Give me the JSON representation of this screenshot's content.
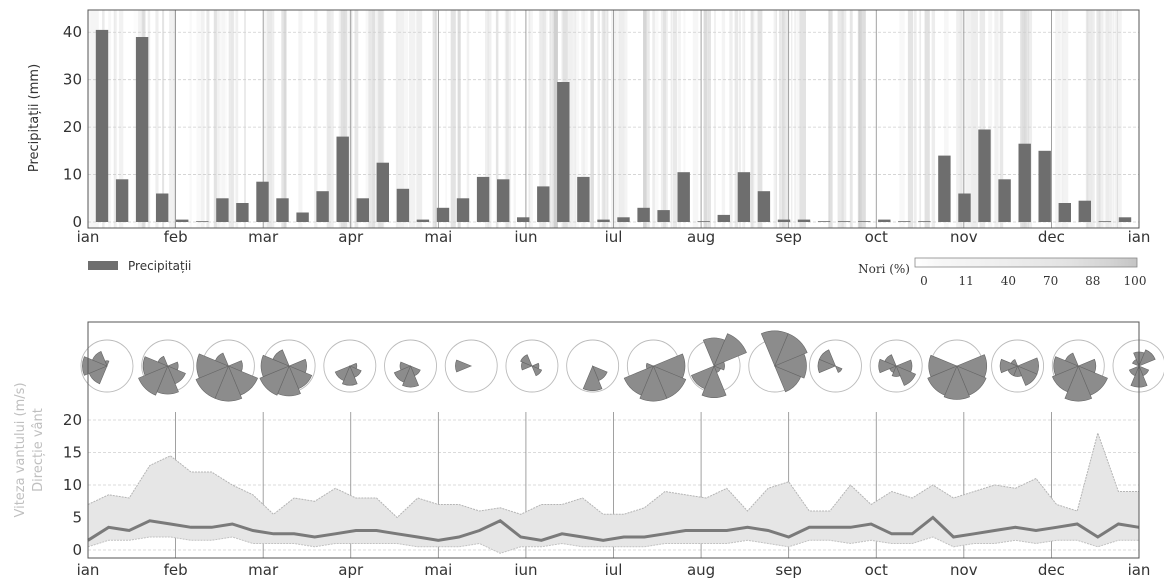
{
  "chart_data": [
    {
      "type": "bar",
      "ylabel": "Precipitații (mm)",
      "ylim": [
        0,
        43
      ],
      "yticks": [
        0,
        10,
        20,
        30,
        40
      ],
      "month_labels": [
        "ian",
        "feb",
        "mar",
        "apr",
        "mai",
        "iun",
        "iul",
        "aug",
        "sep",
        "oct",
        "nov",
        "dec",
        "ian"
      ],
      "legend": "Precipitații",
      "series": [
        {
          "name": "Precipitații",
          "color": "#6e6e6e",
          "values": [
            40.5,
            9,
            39,
            6,
            0.5,
            0,
            5,
            4,
            8.5,
            5,
            2,
            6.5,
            18,
            5,
            12.5,
            7,
            0.5,
            3,
            5,
            9.5,
            9,
            1,
            7.5,
            29.5,
            9.5,
            0.5,
            1,
            3,
            2.5,
            10.5,
            0,
            1.5,
            10.5,
            6.5,
            0.5,
            0.5,
            0,
            0,
            0,
            0.5,
            0,
            0,
            14,
            6,
            19.5,
            9,
            16.5,
            15,
            4,
            4.5,
            0,
            1
          ]
        }
      ],
      "clouds": {
        "legend_title": "Nori (%)",
        "legend_ticks": [
          "0",
          "11",
          "40",
          "70",
          "88",
          "100"
        ]
      }
    },
    {
      "type": "area",
      "ylabel": "Viteza vantului (m/s)",
      "ylabel2": "Direcție vânt",
      "ylim": [
        0,
        22
      ],
      "yticks": [
        0,
        5,
        10,
        15,
        20
      ],
      "month_labels": [
        "ian",
        "feb",
        "mar",
        "apr",
        "mai",
        "iun",
        "iul",
        "aug",
        "sep",
        "oct",
        "nov",
        "dec",
        "ian"
      ],
      "series": [
        {
          "name": "max",
          "color": "#e8e8e8",
          "values": [
            7,
            8.5,
            8,
            13,
            14.5,
            12,
            12,
            10,
            8.5,
            5.5,
            8,
            7.5,
            9.5,
            8,
            8,
            5,
            8,
            7,
            7,
            6,
            6.5,
            5.5,
            7,
            7,
            8,
            5.5,
            5.5,
            6.5,
            9,
            8.5,
            8,
            9.5,
            6,
            9.5,
            10.5,
            6,
            6,
            10,
            7,
            9,
            8,
            10,
            8,
            9,
            10,
            9.5,
            11,
            7,
            6,
            18,
            9,
            9
          ]
        },
        {
          "name": "mean",
          "color": "#7a7a7a",
          "values": [
            1.5,
            3.5,
            3,
            4.5,
            4,
            3.5,
            3.5,
            4,
            3,
            2.5,
            2.5,
            2,
            2.5,
            3,
            3,
            2.5,
            2,
            1.5,
            2,
            3,
            4.5,
            2,
            1.5,
            2.5,
            2,
            1.5,
            2,
            2,
            2.5,
            3,
            3,
            3,
            3.5,
            3,
            2,
            3.5,
            3.5,
            3.5,
            4,
            2.5,
            2.5,
            5,
            2,
            2.5,
            3,
            3.5,
            3,
            3.5,
            4,
            2,
            4,
            3.5
          ]
        },
        {
          "name": "min",
          "color": "#e8e8e8",
          "values": [
            0.5,
            1.5,
            1.5,
            2,
            2,
            1.5,
            1.5,
            2,
            1,
            1,
            1,
            0.5,
            1,
            1,
            1,
            1,
            0.5,
            0.5,
            0.5,
            1,
            -0.5,
            0.5,
            0.5,
            1,
            0.5,
            0.5,
            0.5,
            0.5,
            1,
            1,
            1,
            1,
            1.5,
            1,
            0.5,
            1.5,
            1.5,
            1,
            1.5,
            1,
            1,
            2,
            0.5,
            1,
            1,
            1.5,
            1,
            1.5,
            1.5,
            0.5,
            1.5,
            1.5
          ]
        }
      ],
      "wind_roses": [
        {
          "sectors": [
            0.15,
            0,
            0,
            0,
            0,
            0.55,
            0.7,
            0.45
          ]
        },
        {
          "sectors": [
            0,
            0,
            0.3,
            0.55,
            0.8,
            0.9,
            0.7,
            0.3
          ]
        },
        {
          "sectors": [
            0,
            0,
            0.4,
            0.9,
            1,
            1,
            0.9,
            0.4
          ]
        },
        {
          "sectors": [
            0,
            0,
            0.5,
            0.7,
            0.85,
            0.9,
            0.8,
            0.5
          ]
        },
        {
          "sectors": [
            0,
            0,
            0.2,
            0.35,
            0.55,
            0.45,
            0,
            0
          ]
        },
        {
          "sectors": [
            0,
            0,
            0,
            0.3,
            0.6,
            0.5,
            0.3,
            0
          ]
        },
        {
          "sectors": [
            0,
            0,
            0,
            0,
            0,
            0,
            0.45,
            0
          ]
        },
        {
          "sectors": [
            0,
            0,
            0.2,
            0.3,
            0,
            0,
            0.3,
            0.35
          ]
        },
        {
          "sectors": [
            0,
            0,
            0,
            0.45,
            0.7,
            0,
            0,
            0
          ]
        },
        {
          "sectors": [
            0,
            0,
            0.9,
            1,
            1,
            0.9,
            0.2,
            0
          ]
        },
        {
          "sectors": [
            0.8,
            1,
            0.3,
            0.2,
            0.9,
            0.7,
            0,
            0
          ]
        },
        {
          "sectors": [
            1,
            1,
            0.9,
            0.8,
            0,
            0,
            0,
            0
          ]
        },
        {
          "sectors": [
            0,
            0,
            0,
            0.2,
            0,
            0,
            0.5,
            0.5
          ]
        },
        {
          "sectors": [
            0,
            0,
            0.45,
            0.6,
            0.3,
            0.2,
            0.5,
            0.35
          ]
        },
        {
          "sectors": [
            0,
            0,
            0.85,
            0.9,
            0.95,
            0.9,
            0.8,
            0
          ]
        },
        {
          "sectors": [
            0,
            0,
            0.6,
            0.6,
            0.3,
            0.3,
            0.5,
            0.2
          ]
        },
        {
          "sectors": [
            0,
            0,
            0.5,
            0.9,
            1,
            0.8,
            0.7,
            0.4
          ]
        },
        {
          "sectors": [
            0.4,
            0.5,
            0,
            0.3,
            0.6,
            0.3,
            0,
            0.2
          ]
        }
      ]
    }
  ]
}
